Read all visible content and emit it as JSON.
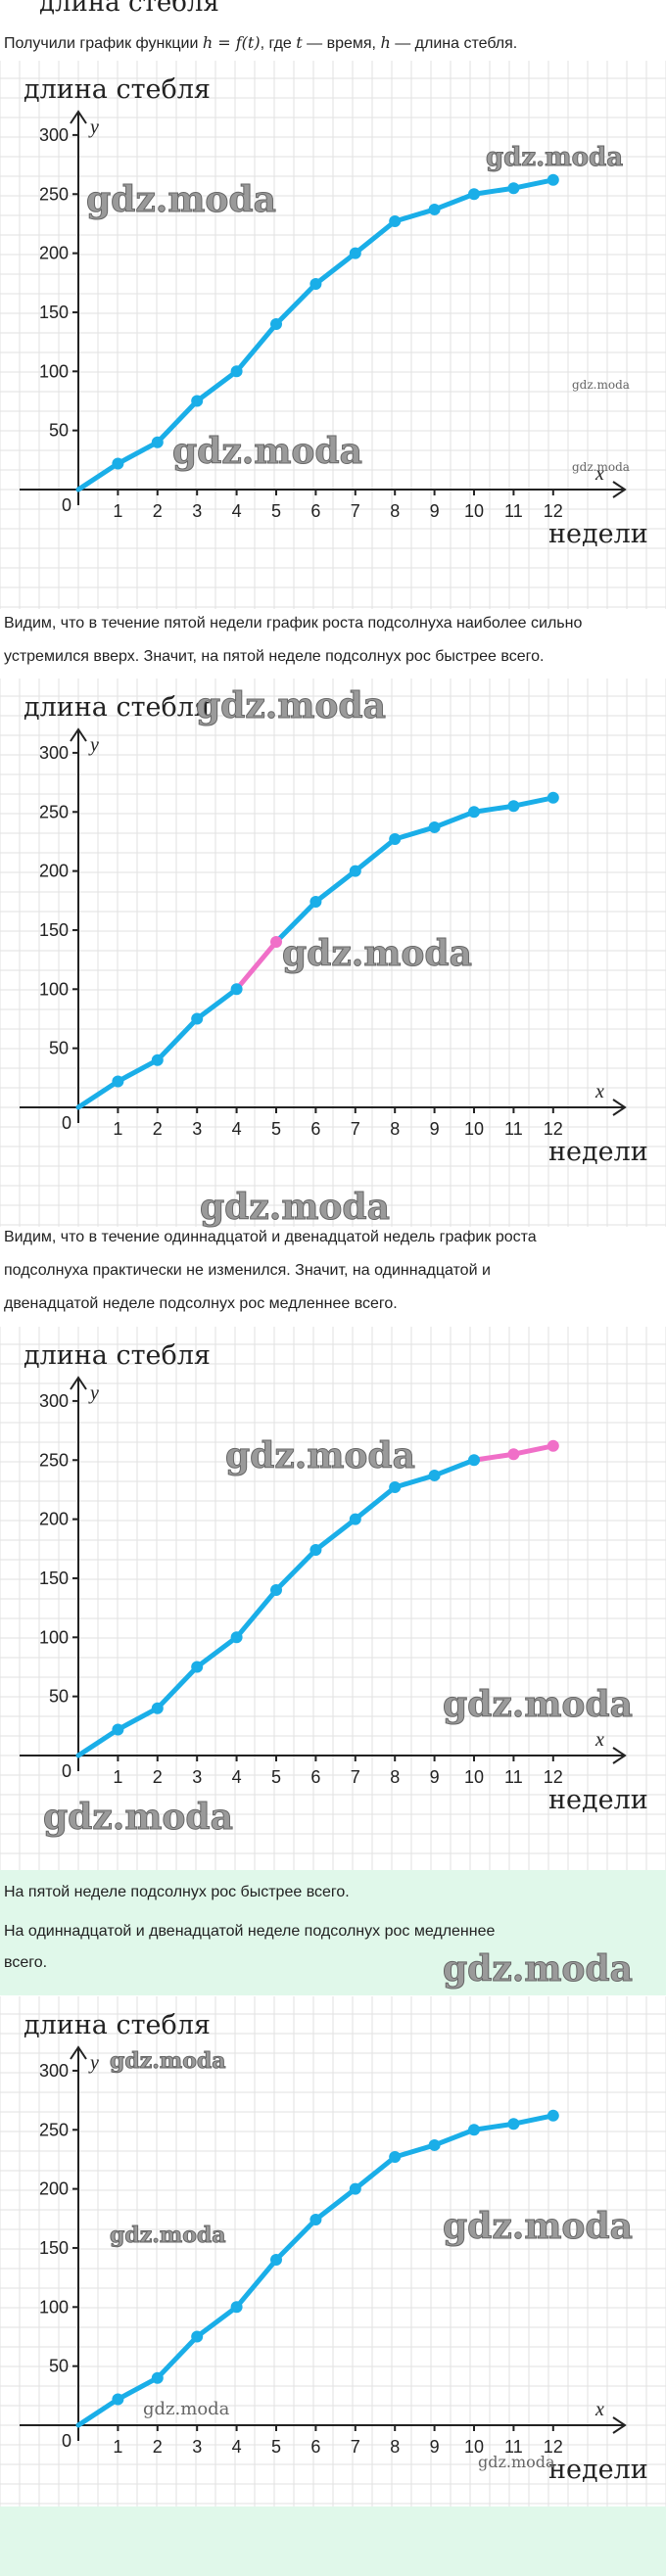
{
  "header_cut": "длина стебля",
  "intro": {
    "before": "Получили график функции ",
    "formula": "h = f(t)",
    "middle": ", где ",
    "t": "t",
    "after_t": " — время, ",
    "h": "h",
    "after_h": " — длина стебля."
  },
  "para1": [
    "Видим, что в течение пятой недели график роста подсолнуха наиболее сильно",
    "устремился вверх. Значит, на пятой неделе подсолнух рос быстрее всего."
  ],
  "para2": [
    "Видим, что в течение одиннадцатой и двенадцатой недель график роста",
    "подсолнуха практически не изменился. Значит, на одиннадцатой и",
    "двенадцатой неделе подсолнух рос медленнее всего."
  ],
  "answer": [
    "На пятой неделе подсолнух рос быстрее всего.",
    "На одиннадцатой и двенадцатой неделе подсолнух рос медленнее",
    "всего."
  ],
  "watermark": "gdz.moda",
  "colors": {
    "line": "#1aaee8",
    "highlight": "#f06fc8",
    "grid": "#e2e2e2",
    "answer_bg": "#e0f8ea"
  },
  "chart_data": [
    {
      "type": "line",
      "ylabel": "длина стебля",
      "y_axis_letter": "y",
      "xlabel": "недели",
      "x_axis_letter": "x",
      "origin_label": "0",
      "x": [
        0,
        1,
        2,
        3,
        4,
        5,
        6,
        7,
        8,
        9,
        10,
        11,
        12
      ],
      "y": [
        0,
        22,
        40,
        75,
        100,
        140,
        174,
        200,
        227,
        237,
        250,
        255,
        262
      ],
      "yticks": [
        50,
        100,
        150,
        200,
        250,
        300
      ],
      "xlim": [
        0,
        13
      ],
      "ylim": [
        0,
        310
      ],
      "grid": true,
      "highlight_segments": []
    },
    {
      "type": "line",
      "ylabel": "длина стебля",
      "y_axis_letter": "y",
      "xlabel": "недели",
      "x_axis_letter": "x",
      "origin_label": "0",
      "x": [
        0,
        1,
        2,
        3,
        4,
        5,
        6,
        7,
        8,
        9,
        10,
        11,
        12
      ],
      "y": [
        0,
        22,
        40,
        75,
        100,
        140,
        174,
        200,
        227,
        237,
        250,
        255,
        262
      ],
      "yticks": [
        50,
        100,
        150,
        200,
        250,
        300
      ],
      "xlim": [
        0,
        13
      ],
      "ylim": [
        0,
        310
      ],
      "grid": true,
      "highlight_segments": [
        [
          4,
          5
        ]
      ]
    },
    {
      "type": "line",
      "ylabel": "длина стебля",
      "y_axis_letter": "y",
      "xlabel": "недели",
      "x_axis_letter": "x",
      "origin_label": "0",
      "x": [
        0,
        1,
        2,
        3,
        4,
        5,
        6,
        7,
        8,
        9,
        10,
        11,
        12
      ],
      "y": [
        0,
        22,
        40,
        75,
        100,
        140,
        174,
        200,
        227,
        237,
        250,
        255,
        262
      ],
      "yticks": [
        50,
        100,
        150,
        200,
        250,
        300
      ],
      "xlim": [
        0,
        13
      ],
      "ylim": [
        0,
        310
      ],
      "grid": true,
      "highlight_segments": [
        [
          10,
          11
        ],
        [
          11,
          12
        ]
      ]
    },
    {
      "type": "line",
      "ylabel": "длина стебля",
      "y_axis_letter": "y",
      "xlabel": "недели",
      "x_axis_letter": "x",
      "origin_label": "0",
      "x": [
        0,
        1,
        2,
        3,
        4,
        5,
        6,
        7,
        8,
        9,
        10,
        11,
        12
      ],
      "y": [
        0,
        22,
        40,
        75,
        100,
        140,
        174,
        200,
        227,
        237,
        250,
        255,
        262
      ],
      "yticks": [
        50,
        100,
        150,
        200,
        250,
        300
      ],
      "xlim": [
        0,
        13
      ],
      "ylim": [
        0,
        310
      ],
      "grid": true,
      "highlight_segments": []
    }
  ]
}
